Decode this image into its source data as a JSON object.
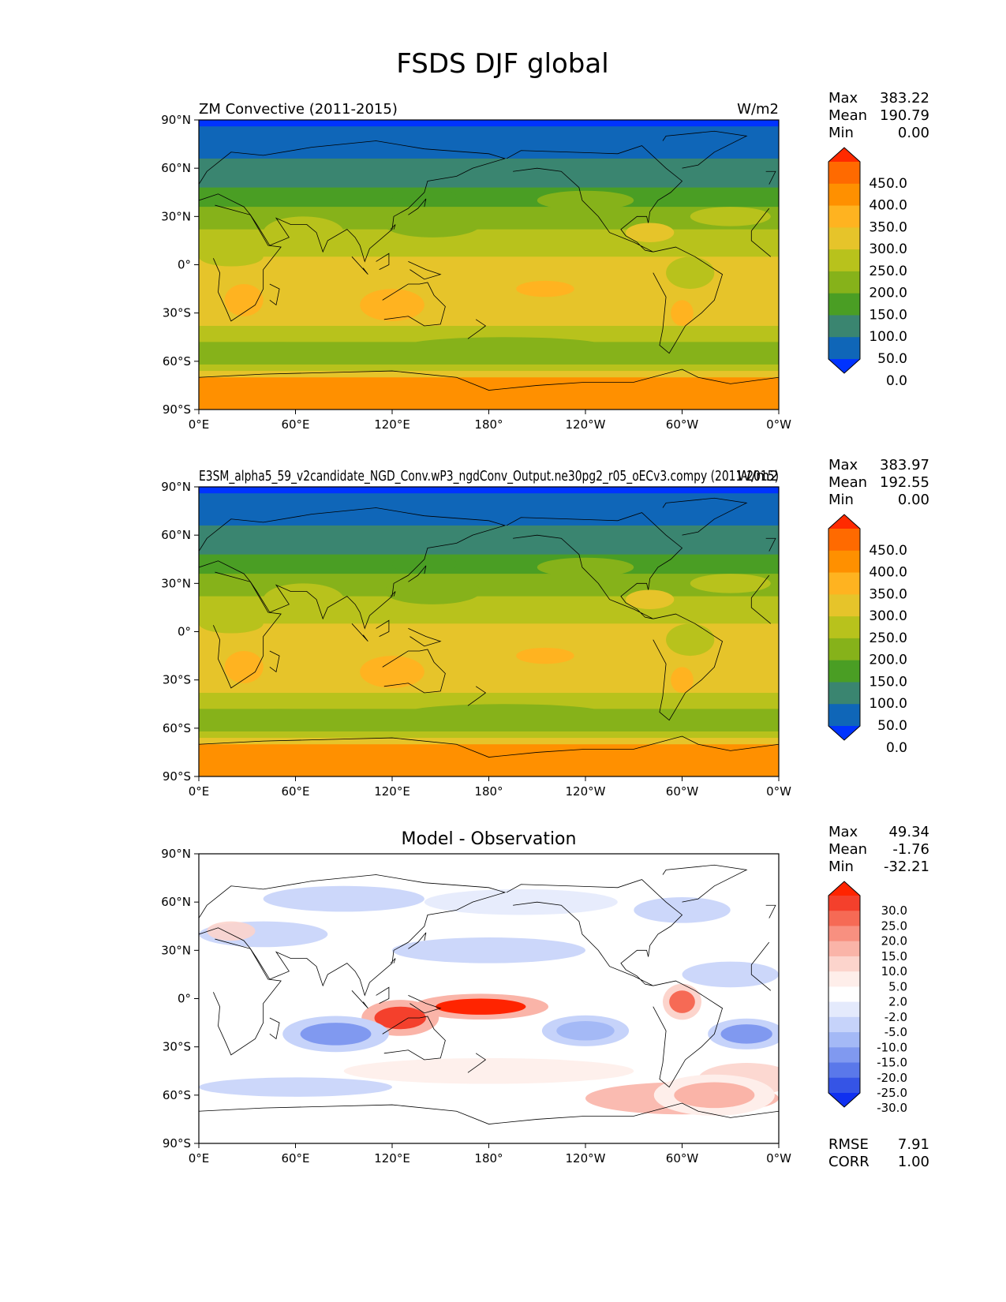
{
  "figure_title": "FSDS DJF global",
  "axes": {
    "lat_ticks": [
      "90°N",
      "60°N",
      "30°N",
      "0°",
      "30°S",
      "60°S",
      "90°S"
    ],
    "lon_ticks": [
      "0°E",
      "60°E",
      "120°E",
      "180°",
      "120°W",
      "60°W",
      "0°W"
    ]
  },
  "panels": [
    {
      "left_title": "ZM Convective (2011-2015)",
      "center_title": "",
      "right_title": "W/m2",
      "stats": [
        {
          "label": "Max",
          "value": "383.22"
        },
        {
          "label": "Mean",
          "value": "190.79"
        },
        {
          "label": "Min",
          "value": "0.00"
        }
      ],
      "colorbar": {
        "labels": [
          "450.0",
          "400.0",
          "350.0",
          "300.0",
          "250.0",
          "200.0",
          "150.0",
          "100.0",
          "50.0",
          "0.0"
        ],
        "colors": [
          "#ff2a00",
          "#ff6a00",
          "#ff9000",
          "#ffb320",
          "#e6c42a",
          "#b8c21c",
          "#86b21a",
          "#4a9e24",
          "#3a8570",
          "#0f66b8",
          "#0033ff"
        ]
      }
    },
    {
      "left_title": "E3SM_alpha5_59_v2candidate_NGD_Conv.wP3_ngdConv_Output.ne30pg2_r05_oECv3.compy (2011-2015)",
      "center_title": "",
      "right_title": "W/m2",
      "stats": [
        {
          "label": "Max",
          "value": "383.97"
        },
        {
          "label": "Mean",
          "value": "192.55"
        },
        {
          "label": "Min",
          "value": "0.00"
        }
      ],
      "colorbar": {
        "labels": [
          "450.0",
          "400.0",
          "350.0",
          "300.0",
          "250.0",
          "200.0",
          "150.0",
          "100.0",
          "50.0",
          "0.0"
        ],
        "colors": [
          "#ff2a00",
          "#ff6a00",
          "#ff9000",
          "#ffb320",
          "#e6c42a",
          "#b8c21c",
          "#86b21a",
          "#4a9e24",
          "#3a8570",
          "#0f66b8",
          "#0033ff"
        ]
      }
    },
    {
      "left_title": "",
      "center_title": "Model - Observation",
      "right_title": "",
      "stats": [
        {
          "label": "Max",
          "value": "49.34"
        },
        {
          "label": "Mean",
          "value": "-1.76"
        },
        {
          "label": "Min",
          "value": "-32.21"
        }
      ],
      "bottom_stats": [
        {
          "label": "RMSE",
          "value": "7.91"
        },
        {
          "label": "CORR",
          "value": "1.00"
        }
      ],
      "colorbar": {
        "labels": [
          "30.0",
          "25.0",
          "20.0",
          "15.0",
          "10.0",
          "5.0",
          "2.0",
          "-2.0",
          "-5.0",
          "-10.0",
          "-15.0",
          "-20.0",
          "-25.0",
          "-30.0"
        ],
        "colors": [
          "#ff2400",
          "#f4402c",
          "#f66a55",
          "#f89080",
          "#fab4a8",
          "#fcd4cc",
          "#feeeea",
          "#ffffff",
          "#e4eafc",
          "#c6d3fa",
          "#a4b9f6",
          "#8099f0",
          "#5a78ea",
          "#3554e6",
          "#1030f0"
        ]
      }
    }
  ],
  "chart_data": [
    {
      "type": "heatmap",
      "title": "ZM Convective (2011-2015)",
      "units": "W/m2",
      "lat_range": [
        -90,
        90
      ],
      "lon_range": [
        0,
        360
      ],
      "levels": [
        0,
        50,
        100,
        150,
        200,
        250,
        300,
        350,
        400,
        450
      ],
      "max": 383.22,
      "mean": 190.79,
      "min": 0.0,
      "zonal_profile": {
        "lat": [
          90,
          80,
          70,
          60,
          50,
          40,
          30,
          20,
          10,
          0,
          -10,
          -20,
          -30,
          -40,
          -50,
          -60,
          -70,
          -80,
          -90
        ],
        "value": [
          15,
          40,
          60,
          75,
          110,
          160,
          200,
          230,
          255,
          270,
          290,
          310,
          300,
          260,
          210,
          180,
          360,
          375,
          380
        ]
      }
    },
    {
      "type": "heatmap",
      "title": "E3SM_alpha5_59_v2candidate_NGD_Conv.wP3_ngdConv_Output.ne30pg2_r05_oECv3.compy (2011-2015)",
      "units": "W/m2",
      "lat_range": [
        -90,
        90
      ],
      "lon_range": [
        0,
        360
      ],
      "levels": [
        0,
        50,
        100,
        150,
        200,
        250,
        300,
        350,
        400,
        450
      ],
      "max": 383.97,
      "mean": 192.55,
      "min": 0.0,
      "zonal_profile": {
        "lat": [
          90,
          80,
          70,
          60,
          50,
          40,
          30,
          20,
          10,
          0,
          -10,
          -20,
          -30,
          -40,
          -50,
          -60,
          -70,
          -80,
          -90
        ],
        "value": [
          15,
          42,
          62,
          78,
          112,
          162,
          205,
          235,
          258,
          268,
          285,
          315,
          305,
          262,
          212,
          182,
          362,
          376,
          381
        ]
      }
    },
    {
      "type": "heatmap",
      "title": "Model - Observation",
      "units": "W/m2",
      "lat_range": [
        -90,
        90
      ],
      "lon_range": [
        0,
        360
      ],
      "levels": [
        -30,
        -25,
        -20,
        -15,
        -10,
        -5,
        -2,
        2,
        5,
        10,
        15,
        20,
        25,
        30
      ],
      "max": 49.34,
      "mean": -1.76,
      "min": -32.21,
      "rmse": 7.91,
      "corr": 1.0,
      "features": [
        {
          "lat": -5,
          "lon": 175,
          "value": 30
        },
        {
          "lat": -12,
          "lon": 125,
          "value": 25
        },
        {
          "lat": -2,
          "lon": 300,
          "value": 20
        },
        {
          "lat": -22,
          "lon": 85,
          "value": -20
        },
        {
          "lat": -22,
          "lon": 340,
          "value": -20
        },
        {
          "lat": -20,
          "lon": 240,
          "value": -15
        },
        {
          "lat": -60,
          "lon": 320,
          "value": 12
        }
      ]
    }
  ]
}
